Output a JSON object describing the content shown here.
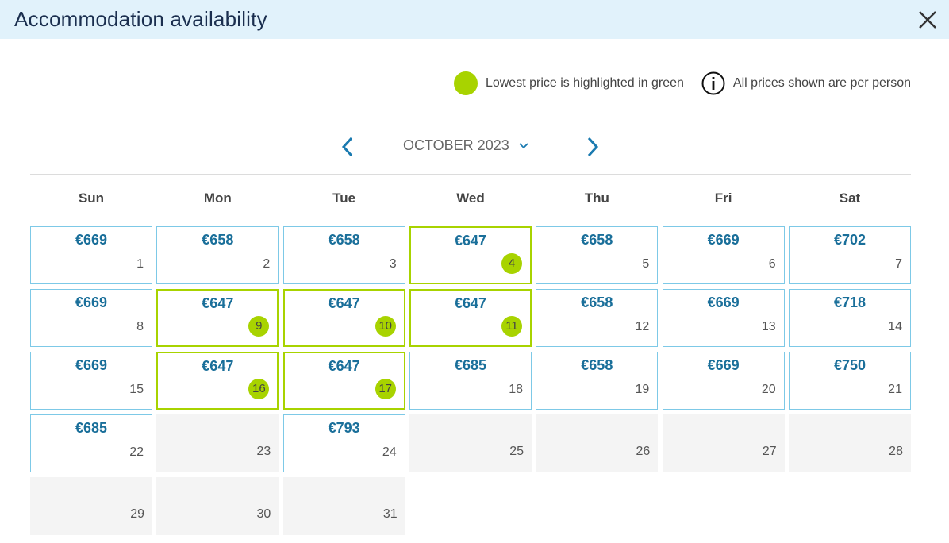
{
  "dialog": {
    "title": "Accommodation availability",
    "close_icon": "close-icon"
  },
  "legend": {
    "lowest_text": "Lowest price is highlighted in green",
    "lowest_color": "#a8d300",
    "info_text": "All prices shown are per person",
    "info_icon": "info-icon"
  },
  "calendar": {
    "month_label": "OCTOBER 2023",
    "prev_icon": "chevron-left-icon",
    "next_icon": "chevron-right-icon",
    "dropdown_icon": "chevron-down-icon",
    "weekdays": [
      "Sun",
      "Mon",
      "Tue",
      "Wed",
      "Thu",
      "Fri",
      "Sat"
    ],
    "days": [
      {
        "day": "1",
        "price": "€669",
        "status": "available"
      },
      {
        "day": "2",
        "price": "€658",
        "status": "available"
      },
      {
        "day": "3",
        "price": "€658",
        "status": "available"
      },
      {
        "day": "4",
        "price": "€647",
        "status": "lowest"
      },
      {
        "day": "5",
        "price": "€658",
        "status": "available"
      },
      {
        "day": "6",
        "price": "€669",
        "status": "available"
      },
      {
        "day": "7",
        "price": "€702",
        "status": "available"
      },
      {
        "day": "8",
        "price": "€669",
        "status": "available"
      },
      {
        "day": "9",
        "price": "€647",
        "status": "lowest"
      },
      {
        "day": "10",
        "price": "€647",
        "status": "lowest"
      },
      {
        "day": "11",
        "price": "€647",
        "status": "lowest"
      },
      {
        "day": "12",
        "price": "€658",
        "status": "available"
      },
      {
        "day": "13",
        "price": "€669",
        "status": "available"
      },
      {
        "day": "14",
        "price": "€718",
        "status": "available"
      },
      {
        "day": "15",
        "price": "€669",
        "status": "available"
      },
      {
        "day": "16",
        "price": "€647",
        "status": "lowest"
      },
      {
        "day": "17",
        "price": "€647",
        "status": "lowest"
      },
      {
        "day": "18",
        "price": "€685",
        "status": "available"
      },
      {
        "day": "19",
        "price": "€658",
        "status": "available"
      },
      {
        "day": "20",
        "price": "€669",
        "status": "available"
      },
      {
        "day": "21",
        "price": "€750",
        "status": "available"
      },
      {
        "day": "22",
        "price": "€685",
        "status": "available"
      },
      {
        "day": "23",
        "price": "",
        "status": "unavailable"
      },
      {
        "day": "24",
        "price": "€793",
        "status": "available"
      },
      {
        "day": "25",
        "price": "",
        "status": "unavailable"
      },
      {
        "day": "26",
        "price": "",
        "status": "unavailable"
      },
      {
        "day": "27",
        "price": "",
        "status": "unavailable"
      },
      {
        "day": "28",
        "price": "",
        "status": "unavailable"
      },
      {
        "day": "29",
        "price": "",
        "status": "unavailable"
      },
      {
        "day": "30",
        "price": "",
        "status": "unavailable"
      },
      {
        "day": "31",
        "price": "",
        "status": "unavailable"
      }
    ]
  },
  "colors": {
    "header_bg": "#e1f2fb",
    "price": "#1a6f9a",
    "nav_arrow": "#1a7ab0",
    "cell_border": "#7dc9e7",
    "unavailable_bg": "#f4f4f4"
  }
}
